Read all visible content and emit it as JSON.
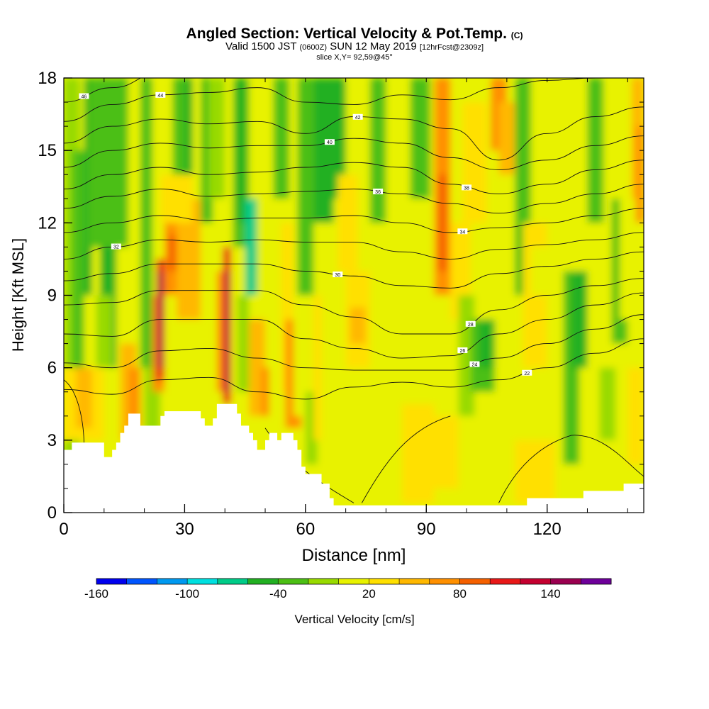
{
  "header": {
    "title": "Angled Section: Vertical Velocity & Pot.Temp.",
    "title_unit": "(C)",
    "valid_a": "Valid 1500 JST",
    "valid_z": "(0600Z)",
    "valid_b": "SUN 12 May 2019",
    "valid_fcst": "[12hrFcst@2309z]",
    "slice": "slice X,Y= 92,59@45°"
  },
  "chart_data": {
    "type": "heatmap",
    "xlabel": "Distance [nm]",
    "ylabel": "Height [Kft MSL]",
    "xlim": [
      0,
      144
    ],
    "ylim": [
      0,
      18
    ],
    "x_ticks": [
      "0",
      "30",
      "60",
      "90",
      "120"
    ],
    "y_ticks": [
      "0",
      "3",
      "6",
      "9",
      "12",
      "15",
      "18"
    ],
    "colorbar": {
      "label": "Vertical Velocity [cm/s]",
      "tick_labels": [
        "-160",
        "-100",
        "-40",
        "20",
        "80",
        "140"
      ],
      "colors": [
        "#0000ee",
        "#0055ff",
        "#0099f0",
        "#00e0e0",
        "#00cc88",
        "#22b022",
        "#4cbf14",
        "#98da00",
        "#e8f200",
        "#ffe000",
        "#ffb800",
        "#ff9000",
        "#f56000",
        "#e81818",
        "#c40030",
        "#9a0050",
        "#6e009a"
      ]
    },
    "terrain_profile": [
      [
        0,
        2.6
      ],
      [
        2,
        2.9
      ],
      [
        9,
        2.9
      ],
      [
        10,
        2.3
      ],
      [
        12,
        2.6
      ],
      [
        13,
        2.9
      ],
      [
        14,
        3.3
      ],
      [
        15,
        3.6
      ],
      [
        16,
        4.1
      ],
      [
        18,
        4.1
      ],
      [
        19,
        3.6
      ],
      [
        23,
        3.6
      ],
      [
        24,
        4.0
      ],
      [
        25,
        4.2
      ],
      [
        33,
        4.2
      ],
      [
        34,
        3.9
      ],
      [
        35,
        3.6
      ],
      [
        37,
        3.9
      ],
      [
        38,
        4.5
      ],
      [
        42,
        4.5
      ],
      [
        43,
        4.1
      ],
      [
        44,
        3.6
      ],
      [
        46,
        3.3
      ],
      [
        47,
        3.0
      ],
      [
        48,
        2.6
      ],
      [
        50,
        3.0
      ],
      [
        51,
        3.3
      ],
      [
        53,
        3.0
      ],
      [
        54,
        3.3
      ],
      [
        56,
        3.3
      ],
      [
        57,
        3.0
      ],
      [
        58,
        2.6
      ],
      [
        59,
        1.9
      ],
      [
        60,
        1.6
      ],
      [
        63,
        1.6
      ],
      [
        64,
        1.2
      ],
      [
        66,
        0.6
      ],
      [
        67,
        0.3
      ],
      [
        114,
        0.3
      ],
      [
        115,
        0.6
      ],
      [
        128,
        0.6
      ],
      [
        129,
        0.9
      ],
      [
        138,
        0.9
      ],
      [
        139,
        1.2
      ],
      [
        144,
        1.2
      ]
    ],
    "annotations": [
      "46",
      "44",
      "42",
      "40",
      "38",
      "36",
      "34",
      "32",
      "30",
      "28",
      "26",
      "24",
      "22"
    ]
  }
}
